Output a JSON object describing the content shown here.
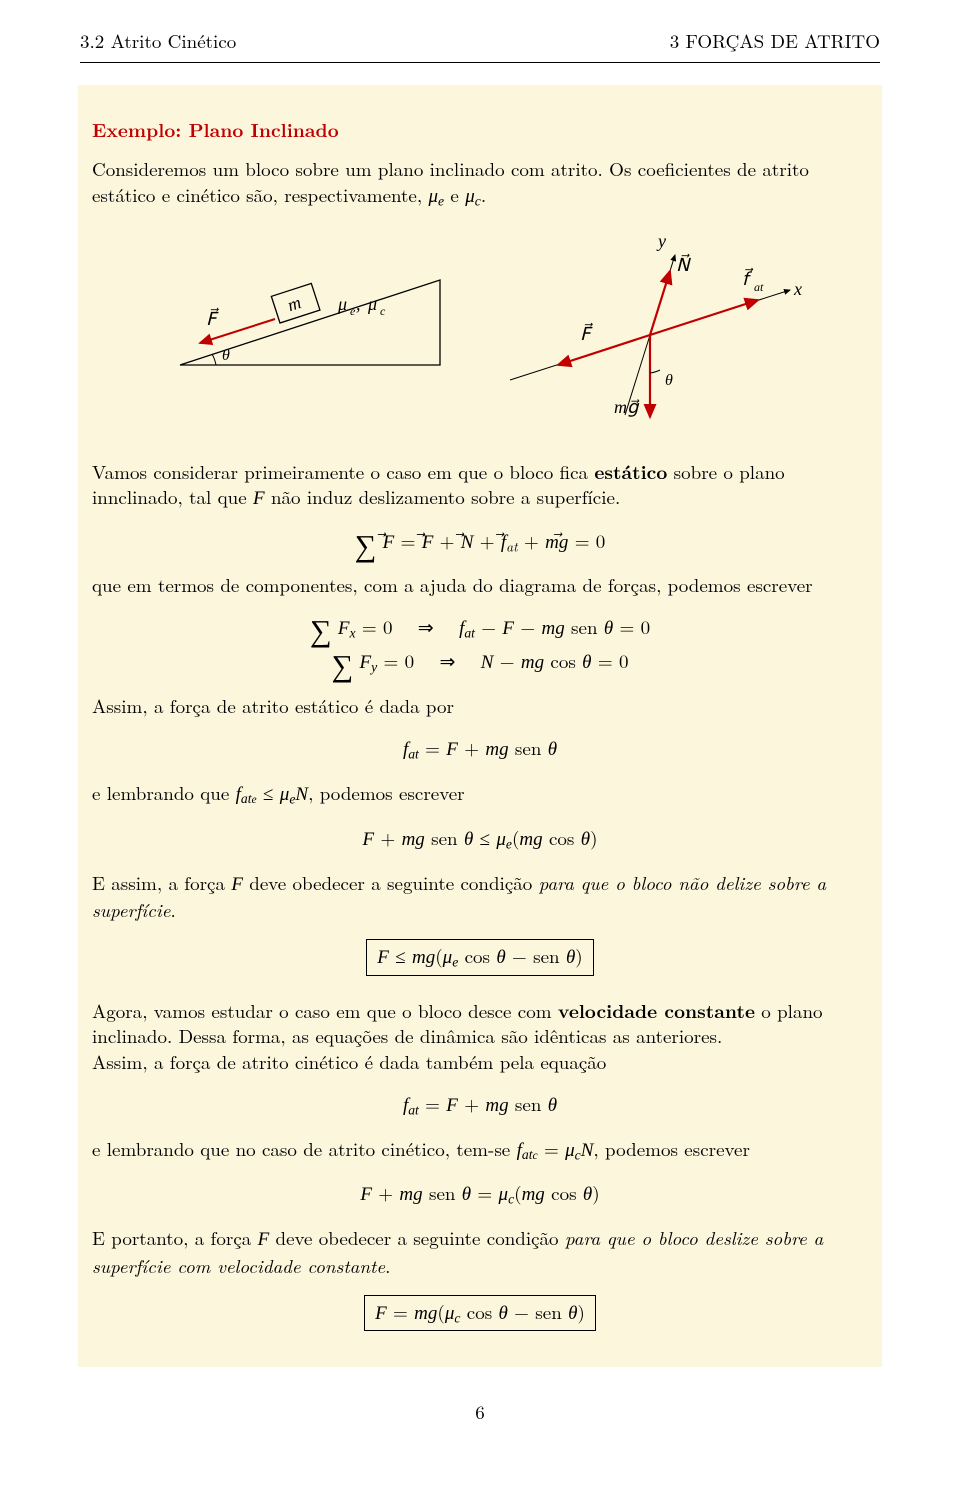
{
  "header": {
    "left": "3.2   Atrito Cinético",
    "right": "3   FORÇAS DE ATRITO"
  },
  "example_title": "Exemplo: Plano Inclinado",
  "intro_html": "Consideremos um bloco sobre um plano inclinado com atrito. Os coeficientes de atrito estático e cinético são, respectivamente, <span class='math-i'>μ<span class='sub'>e</span></span> e <span class='math-i'>μ<span class='sub'>c</span></span>.",
  "diagram": {
    "left": {
      "F": "F",
      "m": "m",
      "mu": "μₑ, μ_c",
      "theta": "θ",
      "colors": {
        "arrow": "#c00000",
        "block": "#000",
        "line": "#000"
      }
    },
    "right": {
      "y": "y",
      "x": "x",
      "N": "N",
      "F": "F",
      "fat": "f",
      "fat_sub": "at",
      "theta": "θ",
      "mg": "mg",
      "colors": {
        "arrow": "#c00000",
        "axis": "#000"
      }
    }
  },
  "para1_html": "Vamos considerar primeiramente o caso em que o bloco fica <b>estático</b> sobre o plano innclinado, tal que <span class='math-i'>F</span> não induz deslizamento sobre a superfície.",
  "eq_sumvec_html": "<span class='big-sum'>∑</span> <span class='vec math-i'>F</span> = <span class='vec math-i'>F</span> + <span class='vec math-i'>N</span> + <span class='vec math-i'>f</span><span class='sub'>at</span> + <span class='math-i'>m</span><span class='vec math-i'>g</span> = 0",
  "para2_html": "que em termos de componentes, com a ajuda do diagrama de forças, podemos escrever",
  "eq_fx_html": "<span class='big-sum'>∑</span> <span class='math-i'>F<span class='sub'>x</span></span> = 0 &nbsp;&nbsp;⇒&nbsp;&nbsp; <span class='math-i'>f<span class='sub'>at</span></span> − <span class='math-i'>F</span> − <span class='math-i'>mg</span> sen <span class='math-i'>θ</span> = 0",
  "eq_fy_html": "<span class='big-sum'>∑</span> <span class='math-i'>F<span class='sub'>y</span></span> = 0 &nbsp;&nbsp;⇒&nbsp;&nbsp; <span class='math-i'>N</span> − <span class='math-i'>mg</span> cos <span class='math-i'>θ</span> = 0",
  "para3_html": "Assim, a força de atrito estático é dada por",
  "eq_fat_html": "<span class='math-i'>f<span class='sub'>at</span></span> = <span class='math-i'>F</span> + <span class='math-i'>mg</span> sen <span class='math-i'>θ</span>",
  "para4_html": "e lembrando que <span class='math-i'>f<span class='sub'>at<span style=\"font-size:0.85em\">e</span></span></span> ≤ <span class='math-i'>μ<span class='sub'>e</span>N</span>, podemos escrever",
  "eq_ineq_html": "<span class='math-i'>F</span> + <span class='math-i'>mg</span> sen <span class='math-i'>θ</span> ≤ <span class='math-i'>μ<span class='sub'>e</span></span>(<span class='math-i'>mg</span> cos <span class='math-i'>θ</span>)",
  "para5_html": "E assim, a força <span class='math-i'>F</span> deve obedecer a seguinte condição <i>para que o bloco não delize sobre a superfície</i>.",
  "eq_box1_html": "<span class='math-i'>F</span> ≤ <span class='math-i'>mg</span>(<span class='math-i'>μ<span class='sub'>e</span></span> cos <span class='math-i'>θ</span> − sen <span class='math-i'>θ</span>)",
  "para6_html": "Agora, vamos estudar o caso em que o bloco desce com <b>velocidade constante</b> o plano inclinado. Dessa forma, as equações de dinâmica são idênticas as anteriores.<br>Assim, a força de atrito cinético é dada também pela equação",
  "eq_fat2_html": "<span class='math-i'>f<span class='sub'>at</span></span> = <span class='math-i'>F</span> + <span class='math-i'>mg</span> sen <span class='math-i'>θ</span>",
  "para7_html": "e lembrando que no caso de atrito cinético, tem-se <span class='math-i'>f<span class='sub'>at<span style=\"font-size:0.85em\">c</span></span></span> = <span class='math-i'>μ<span class='sub'>c</span>N</span>, podemos escrever",
  "eq_eq2_html": "<span class='math-i'>F</span> + <span class='math-i'>mg</span> sen <span class='math-i'>θ</span> = <span class='math-i'>μ<span class='sub'>c</span></span>(<span class='math-i'>mg</span> cos <span class='math-i'>θ</span>)",
  "para8_html": "E portanto, a força <span class='math-i'>F</span> deve obedecer a seguinte condição <i>para que o bloco deslize sobre a superfície com velocidade constante</i>.",
  "eq_box2_html": "<span class='math-i'>F</span> = <span class='math-i'>mg</span>(<span class='math-i'>μ<span class='sub'>c</span></span> cos <span class='math-i'>θ</span> − sen <span class='math-i'>θ</span>)",
  "page_number": "6",
  "colors": {
    "example_bg": "#fbf6dc",
    "title_red": "#c00000",
    "arrow_red": "#c00000"
  }
}
